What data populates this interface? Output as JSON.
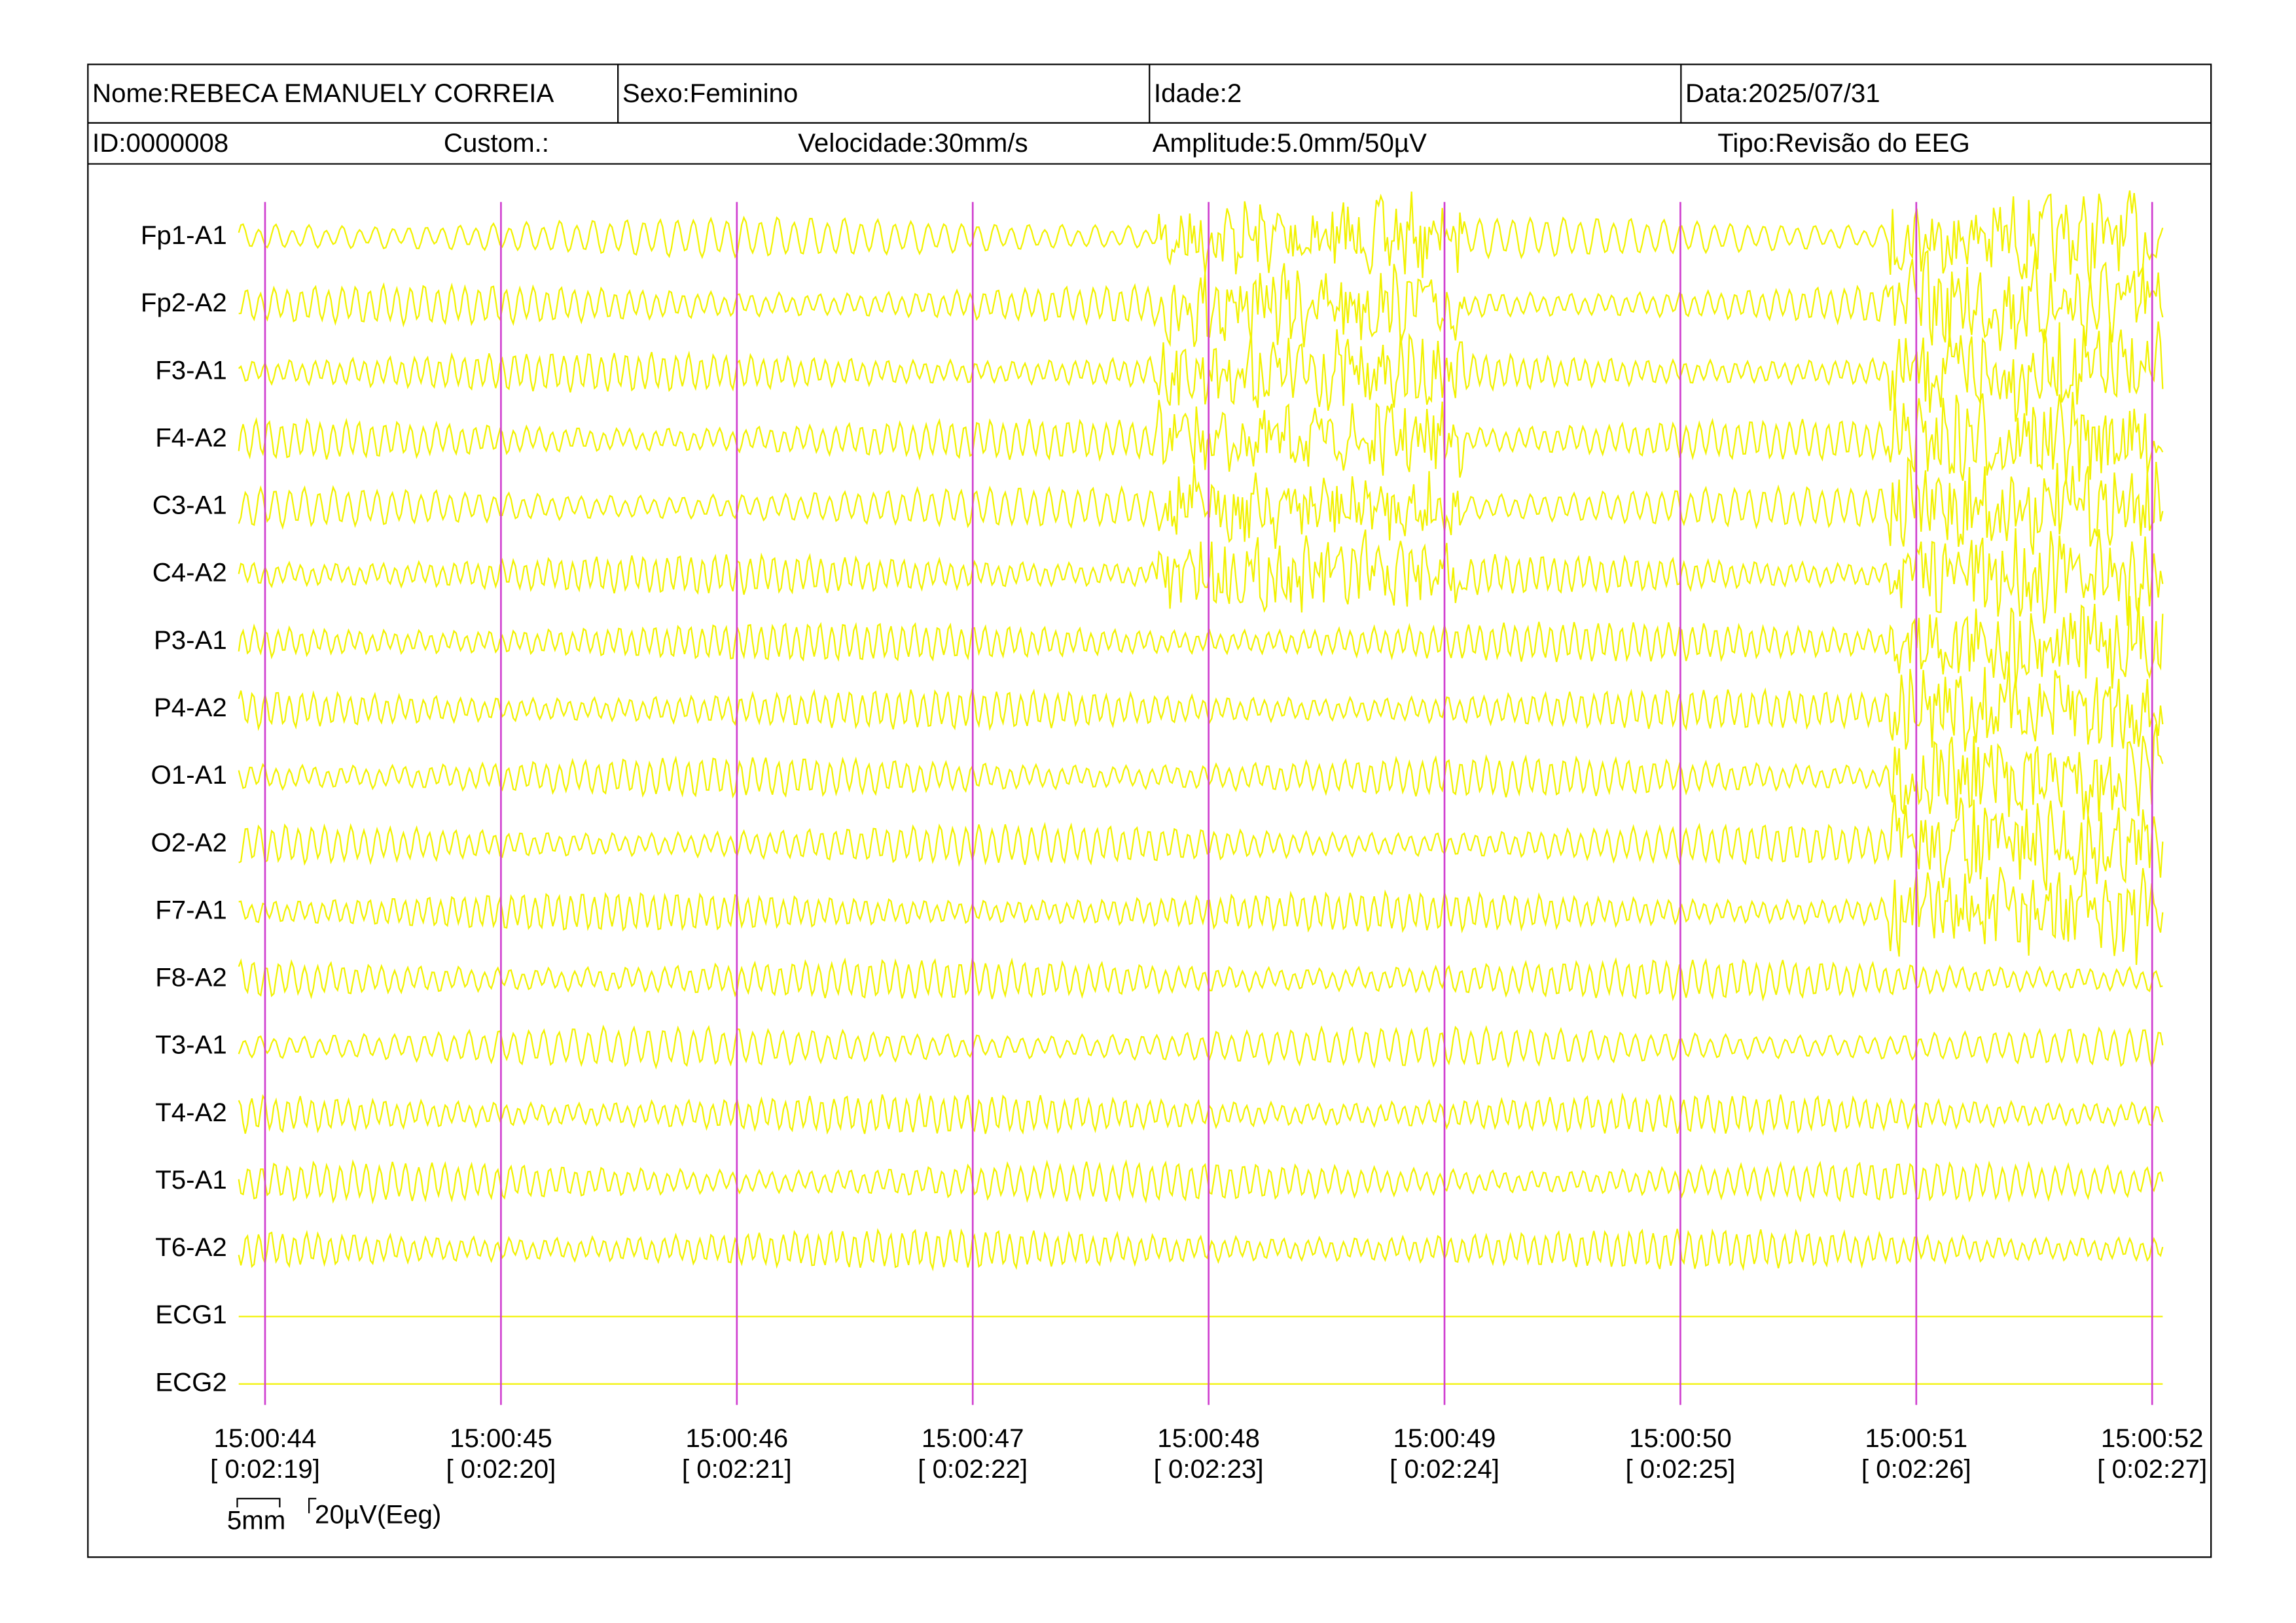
{
  "header": {
    "name": "Nome:REBECA EMANUELY CORREIA",
    "sex": "Sexo:Feminino",
    "age": "Idade:2",
    "date": "Data:2025/07/31",
    "id": "ID:0000008",
    "custom": "Custom.:",
    "speed": "Velocidade:30mm/s",
    "amplitude": "Amplitude:5.0mm/50µV",
    "type": "Tipo:Revisão do EEG"
  },
  "channels": [
    "Fp1-A1",
    "Fp2-A2",
    "F3-A1",
    "F4-A2",
    "C3-A1",
    "C4-A2",
    "P3-A1",
    "P4-A2",
    "O1-A1",
    "O2-A2",
    "F7-A1",
    "F8-A2",
    "T3-A1",
    "T4-A2",
    "T5-A1",
    "T6-A2",
    "ECG1",
    "ECG2"
  ],
  "time_marks": [
    {
      "time": "15:00:44",
      "elapsed": "[ 0:02:19]"
    },
    {
      "time": "15:00:45",
      "elapsed": "[ 0:02:20]"
    },
    {
      "time": "15:00:46",
      "elapsed": "[ 0:02:21]"
    },
    {
      "time": "15:00:47",
      "elapsed": "[ 0:02:22]"
    },
    {
      "time": "15:00:48",
      "elapsed": "[ 0:02:23]"
    },
    {
      "time": "15:00:49",
      "elapsed": "[ 0:02:24]"
    },
    {
      "time": "15:00:50",
      "elapsed": "[ 0:02:25]"
    },
    {
      "time": "15:00:51",
      "elapsed": "[ 0:02:26]"
    },
    {
      "time": "15:00:52",
      "elapsed": "[ 0:02:27]"
    }
  ],
  "scale": {
    "length": "5mm",
    "amplitude": "20µV(Eeg)"
  }
}
